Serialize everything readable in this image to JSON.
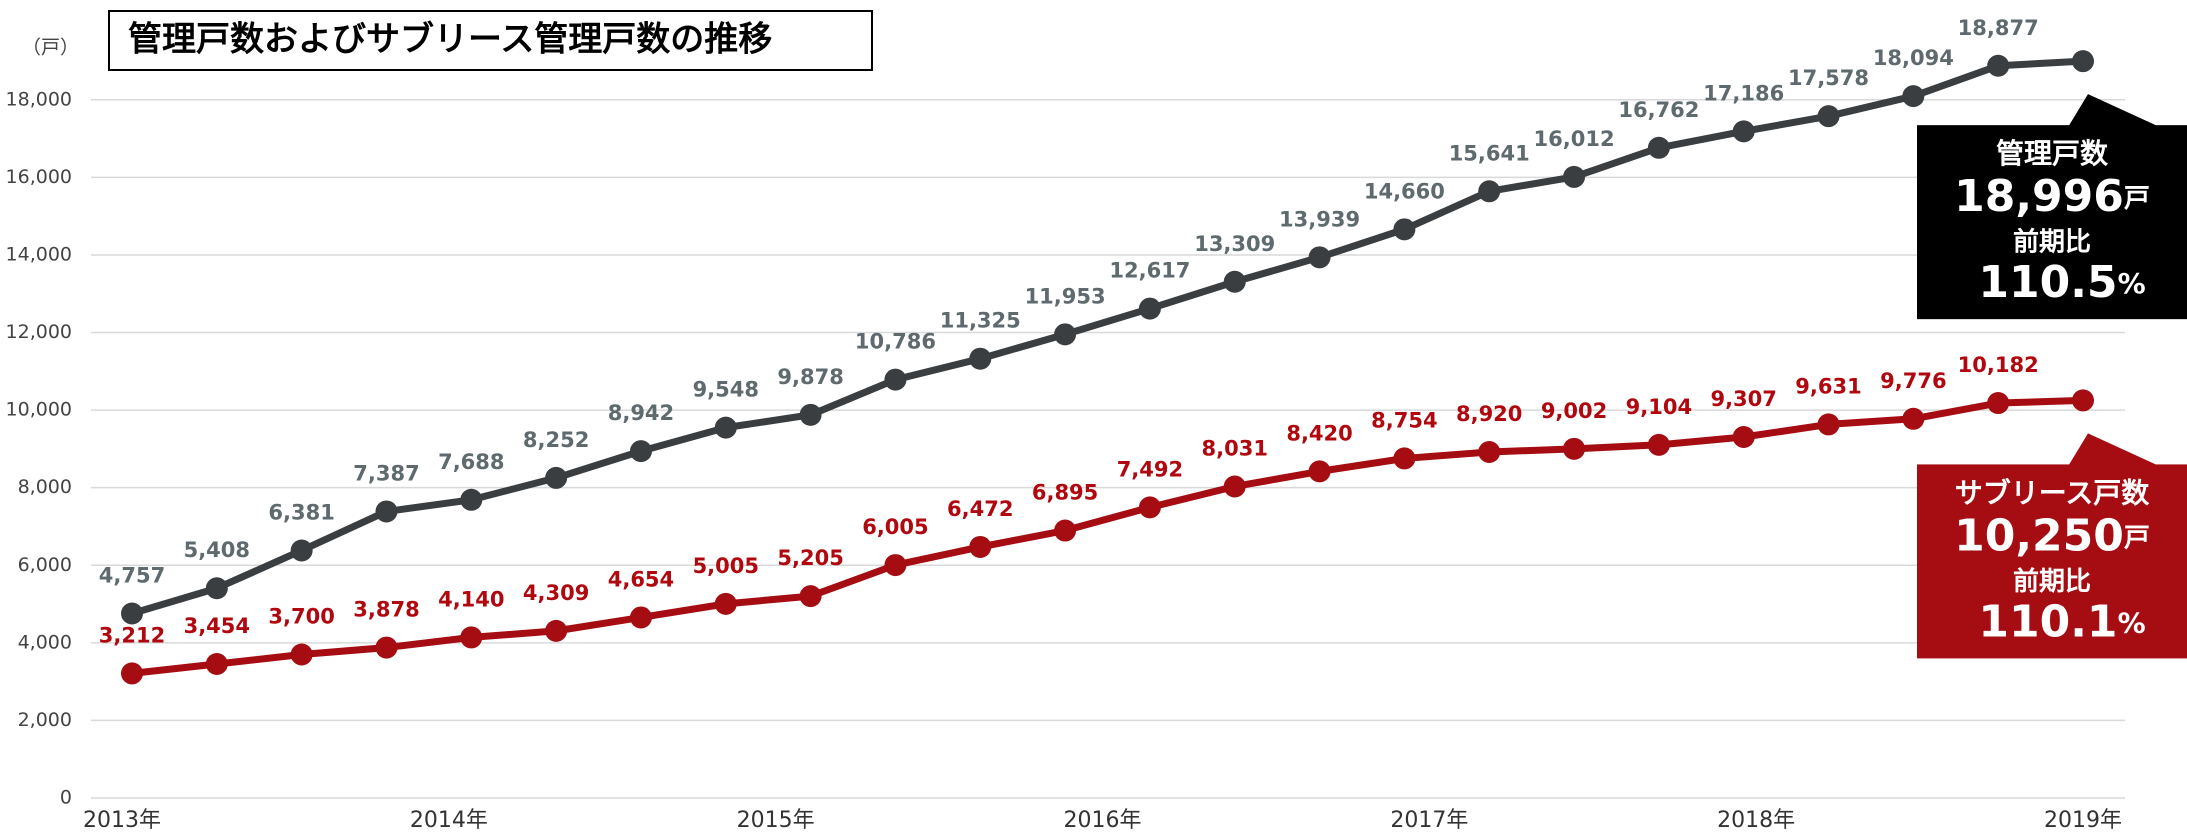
{
  "chart_data": {
    "type": "line",
    "title": "管理戸数およびサブリース管理戸数の推移",
    "y_unit_label": "（戸）",
    "categories": [
      null,
      null,
      null,
      null,
      null,
      null,
      null,
      null,
      null,
      null,
      null,
      null,
      null,
      null,
      null,
      null,
      null,
      null,
      null,
      null,
      null,
      null,
      null,
      null
    ],
    "x_labels": [
      "2013年",
      "2014年",
      "2015年",
      "2016年",
      "2017年",
      "2018年",
      "2019年"
    ],
    "ylim": [
      0,
      19000
    ],
    "yticks": [
      0,
      {
        "value": 2000,
        "label": "2,000"
      },
      {
        "value": 4000,
        "label": "4,000"
      },
      {
        "value": 6000,
        "label": "6,000"
      },
      {
        "value": 8000,
        "label": "8,000"
      },
      {
        "value": 10000,
        "label": "10,000"
      },
      {
        "value": 12000,
        "label": "12,000"
      },
      {
        "value": 14000,
        "label": "14,000"
      },
      {
        "value": 16000,
        "label": "16,000"
      },
      {
        "value": 18000,
        "label": "18,000"
      }
    ],
    "grid": true,
    "series": [
      {
        "name": "管理戸数",
        "color": "#3b3e40",
        "label_color": "#5e6a6d",
        "values": [
          4757,
          5408,
          6381,
          7387,
          7688,
          8252,
          8942,
          9548,
          9878,
          10786,
          11325,
          11953,
          12617,
          13309,
          13939,
          14660,
          15641,
          16012,
          16762,
          17186,
          17578,
          18094,
          18877,
          18996
        ],
        "value_labels": [
          "4,757",
          "5,408",
          "6,381",
          "7,387",
          "7,688",
          "8,252",
          "8,942",
          "9,548",
          "9,878",
          "10,786",
          "11,325",
          "11,953",
          "12,617",
          "13,309",
          "13,939",
          "14,660",
          "15,641",
          "16,012",
          "16,762",
          "17,186",
          "17,578",
          "18,094",
          "18,877",
          null
        ],
        "callout": {
          "title": "管理戸数",
          "value_label": "18,996",
          "unit": "戸",
          "ratio_title": "前期比",
          "ratio_label": "110.5",
          "ratio_unit": "%",
          "color": "#000000"
        }
      },
      {
        "name": "サブリース戸数",
        "color": "#a50d12",
        "label_color": "#b0080e",
        "values": [
          3212,
          3454,
          3700,
          3878,
          4140,
          4309,
          4654,
          5005,
          5205,
          6005,
          6472,
          6895,
          7492,
          8031,
          8420,
          8754,
          8920,
          9002,
          9104,
          9307,
          9631,
          9776,
          10182,
          10250
        ],
        "value_labels": [
          "3,212",
          "3,454",
          "3,700",
          "3,878",
          "4,140",
          "4,309",
          "4,654",
          "5,005",
          "5,205",
          "6,005",
          "6,472",
          "6,895",
          "7,492",
          "8,031",
          "8,420",
          "8,754",
          "8,920",
          "9,002",
          "9,104",
          "9,307",
          "9,631",
          "9,776",
          "10,182",
          null
        ],
        "callout": {
          "title": "サブリース戸数",
          "value_label": "10,250",
          "unit": "戸",
          "ratio_title": "前期比",
          "ratio_label": "110.1",
          "ratio_unit": "%",
          "color": "#a50d12"
        }
      }
    ]
  }
}
